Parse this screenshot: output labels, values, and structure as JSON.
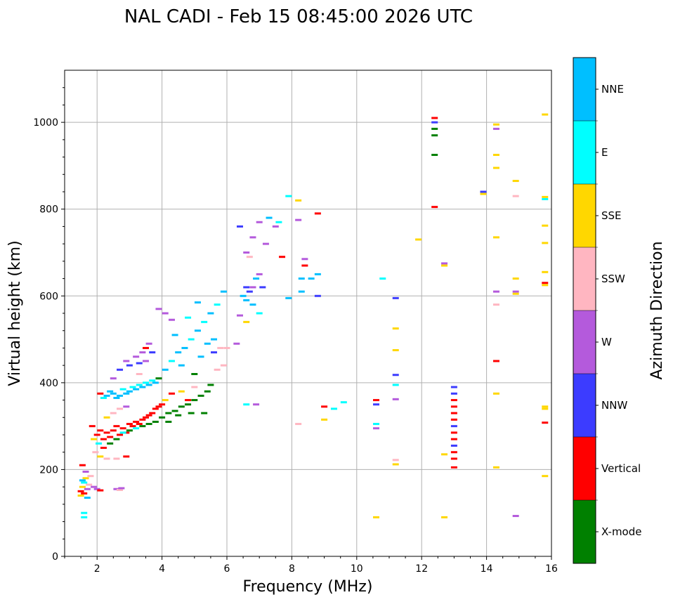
{
  "chart_data": {
    "type": "scatter",
    "title": "NAL CADI - Feb 15 08:45:00 2026 UTC",
    "xlabel": "Frequency (MHz)",
    "ylabel": "Virtual height (km)",
    "xlim": [
      1,
      16
    ],
    "ylim": [
      0,
      1120
    ],
    "xticks": [
      2,
      4,
      6,
      8,
      10,
      12,
      14,
      16
    ],
    "yticks": [
      0,
      200,
      400,
      600,
      800,
      1000
    ],
    "grid": true,
    "colorbar": {
      "label": "Azimuth Direction",
      "categories": [
        {
          "name": "X-mode",
          "color": "#008000"
        },
        {
          "name": "Vertical",
          "color": "#ff0000"
        },
        {
          "name": "NNW",
          "color": "#3c3cff"
        },
        {
          "name": "W",
          "color": "#b45adc"
        },
        {
          "name": "SSW",
          "color": "#ffb6c1"
        },
        {
          "name": "SSE",
          "color": "#ffd700"
        },
        {
          "name": "E",
          "color": "#00ffff"
        },
        {
          "name": "NNE",
          "color": "#00bfff"
        }
      ]
    },
    "points": [
      [
        1.5,
        150,
        "Vertical"
      ],
      [
        1.55,
        160,
        "SSE"
      ],
      [
        1.6,
        170,
        "E"
      ],
      [
        1.6,
        145,
        "Vertical"
      ],
      [
        1.65,
        180,
        "SSE"
      ],
      [
        1.55,
        175,
        "NNE"
      ],
      [
        1.7,
        155,
        "W"
      ],
      [
        1.6,
        100,
        "E"
      ],
      [
        1.6,
        90,
        "E"
      ],
      [
        1.75,
        165,
        "SSW"
      ],
      [
        1.5,
        140,
        "SSE"
      ],
      [
        1.65,
        195,
        "W"
      ],
      [
        1.8,
        185,
        "SSW"
      ],
      [
        1.9,
        160,
        "W"
      ],
      [
        2.0,
        155,
        "W"
      ],
      [
        2.1,
        152,
        "Vertical"
      ],
      [
        2.6,
        155,
        "W"
      ],
      [
        2.7,
        153,
        "SSW"
      ],
      [
        2.75,
        157,
        "W"
      ],
      [
        1.55,
        210,
        "Vertical"
      ],
      [
        1.7,
        135,
        "NNE"
      ],
      [
        1.85,
        300,
        "Vertical"
      ],
      [
        1.9,
        270,
        "SSE"
      ],
      [
        1.95,
        240,
        "SSW"
      ],
      [
        2.0,
        280,
        "Vertical"
      ],
      [
        2.05,
        260,
        "E"
      ],
      [
        2.1,
        290,
        "Vertical"
      ],
      [
        2.2,
        270,
        "Vertical"
      ],
      [
        2.3,
        285,
        "Vertical"
      ],
      [
        2.4,
        275,
        "Vertical"
      ],
      [
        2.5,
        290,
        "Vertical"
      ],
      [
        2.6,
        300,
        "Vertical"
      ],
      [
        2.7,
        280,
        "Vertical"
      ],
      [
        2.8,
        295,
        "Vertical"
      ],
      [
        2.9,
        285,
        "Vertical"
      ],
      [
        3.0,
        305,
        "Vertical"
      ],
      [
        3.1,
        300,
        "Vertical"
      ],
      [
        3.2,
        310,
        "Vertical"
      ],
      [
        3.3,
        305,
        "Vertical"
      ],
      [
        3.4,
        315,
        "Vertical"
      ],
      [
        3.5,
        320,
        "Vertical"
      ],
      [
        3.6,
        325,
        "Vertical"
      ],
      [
        3.7,
        330,
        "Vertical"
      ],
      [
        3.8,
        340,
        "Vertical"
      ],
      [
        3.9,
        345,
        "Vertical"
      ],
      [
        2.2,
        250,
        "Vertical"
      ],
      [
        2.4,
        260,
        "X-mode"
      ],
      [
        2.6,
        270,
        "X-mode"
      ],
      [
        2.8,
        285,
        "E"
      ],
      [
        3.0,
        290,
        "X-mode"
      ],
      [
        3.2,
        295,
        "E"
      ],
      [
        3.4,
        300,
        "X-mode"
      ],
      [
        3.6,
        305,
        "X-mode"
      ],
      [
        3.8,
        310,
        "X-mode"
      ],
      [
        2.3,
        320,
        "SSE"
      ],
      [
        2.5,
        330,
        "SSW"
      ],
      [
        2.7,
        340,
        "SSW"
      ],
      [
        2.9,
        345,
        "W"
      ],
      [
        2.1,
        230,
        "SSE"
      ],
      [
        2.3,
        225,
        "SSW"
      ],
      [
        2.6,
        225,
        "SSW"
      ],
      [
        2.9,
        230,
        "Vertical"
      ],
      [
        2.3,
        370,
        "NNE"
      ],
      [
        2.4,
        380,
        "NNE"
      ],
      [
        2.5,
        375,
        "NNE"
      ],
      [
        2.6,
        365,
        "NNE"
      ],
      [
        2.7,
        370,
        "NNE"
      ],
      [
        2.8,
        385,
        "E"
      ],
      [
        2.9,
        375,
        "NNE"
      ],
      [
        3.0,
        380,
        "NNE"
      ],
      [
        3.1,
        390,
        "E"
      ],
      [
        3.2,
        385,
        "NNE"
      ],
      [
        3.3,
        395,
        "E"
      ],
      [
        3.4,
        390,
        "NNE"
      ],
      [
        3.5,
        400,
        "E"
      ],
      [
        3.6,
        395,
        "NNE"
      ],
      [
        3.7,
        405,
        "E"
      ],
      [
        3.8,
        400,
        "NNE"
      ],
      [
        2.1,
        375,
        "Vertical"
      ],
      [
        2.2,
        365,
        "E"
      ],
      [
        3.9,
        410,
        "X-mode"
      ],
      [
        2.5,
        410,
        "W"
      ],
      [
        2.7,
        430,
        "NNW"
      ],
      [
        2.9,
        450,
        "W"
      ],
      [
        3.0,
        440,
        "NNW"
      ],
      [
        3.2,
        460,
        "W"
      ],
      [
        3.3,
        445,
        "NNW"
      ],
      [
        3.4,
        470,
        "W"
      ],
      [
        3.5,
        480,
        "Vertical"
      ],
      [
        3.6,
        490,
        "W"
      ],
      [
        3.7,
        470,
        "NNW"
      ],
      [
        3.5,
        450,
        "W"
      ],
      [
        3.3,
        420,
        "SSW"
      ],
      [
        4.0,
        320,
        "X-mode"
      ],
      [
        4.2,
        330,
        "X-mode"
      ],
      [
        4.4,
        335,
        "X-mode"
      ],
      [
        4.6,
        345,
        "X-mode"
      ],
      [
        4.8,
        350,
        "X-mode"
      ],
      [
        5.0,
        360,
        "X-mode"
      ],
      [
        5.2,
        370,
        "X-mode"
      ],
      [
        5.4,
        380,
        "X-mode"
      ],
      [
        4.2,
        310,
        "X-mode"
      ],
      [
        4.5,
        325,
        "X-mode"
      ],
      [
        4.9,
        330,
        "X-mode"
      ],
      [
        5.3,
        330,
        "X-mode"
      ],
      [
        4.1,
        360,
        "SSE"
      ],
      [
        4.3,
        375,
        "Vertical"
      ],
      [
        4.6,
        380,
        "SSE"
      ],
      [
        5.0,
        390,
        "SSW"
      ],
      [
        5.5,
        395,
        "X-mode"
      ],
      [
        5.0,
        420,
        "X-mode"
      ],
      [
        4.8,
        360,
        "Vertical"
      ],
      [
        4.0,
        350,
        "Vertical"
      ],
      [
        4.1,
        430,
        "NNE"
      ],
      [
        4.3,
        450,
        "E"
      ],
      [
        4.5,
        470,
        "NNE"
      ],
      [
        4.7,
        480,
        "NNE"
      ],
      [
        4.9,
        500,
        "E"
      ],
      [
        5.1,
        520,
        "NNE"
      ],
      [
        5.3,
        540,
        "E"
      ],
      [
        5.5,
        560,
        "NNE"
      ],
      [
        5.7,
        580,
        "E"
      ],
      [
        5.2,
        460,
        "NNE"
      ],
      [
        5.4,
        490,
        "NNE"
      ],
      [
        5.6,
        500,
        "NNE"
      ],
      [
        4.6,
        440,
        "NNE"
      ],
      [
        4.4,
        510,
        "NNE"
      ],
      [
        4.3,
        545,
        "W"
      ],
      [
        4.8,
        550,
        "E"
      ],
      [
        5.1,
        585,
        "NNE"
      ],
      [
        5.9,
        610,
        "NNE"
      ],
      [
        5.8,
        480,
        "SSW"
      ],
      [
        5.9,
        440,
        "SSW"
      ],
      [
        5.7,
        430,
        "SSW"
      ],
      [
        5.6,
        470,
        "NNW"
      ],
      [
        4.1,
        560,
        "W"
      ],
      [
        3.9,
        570,
        "W"
      ],
      [
        6.5,
        600,
        "NNE"
      ],
      [
        6.6,
        590,
        "NNE"
      ],
      [
        6.7,
        610,
        "NNW"
      ],
      [
        6.8,
        620,
        "W"
      ],
      [
        6.9,
        640,
        "NNE"
      ],
      [
        7.0,
        650,
        "W"
      ],
      [
        6.6,
        620,
        "NNW"
      ],
      [
        6.8,
        580,
        "NNE"
      ],
      [
        7.0,
        560,
        "E"
      ],
      [
        7.1,
        620,
        "NNW"
      ],
      [
        7.2,
        720,
        "W"
      ],
      [
        7.0,
        770,
        "W"
      ],
      [
        7.3,
        780,
        "NNE"
      ],
      [
        7.6,
        770,
        "E"
      ],
      [
        7.5,
        760,
        "W"
      ],
      [
        6.7,
        690,
        "SSW"
      ],
      [
        6.6,
        700,
        "W"
      ],
      [
        6.4,
        760,
        "NNW"
      ],
      [
        6.8,
        735,
        "W"
      ],
      [
        7.7,
        690,
        "Vertical"
      ],
      [
        7.9,
        830,
        "E"
      ],
      [
        8.2,
        820,
        "SSE"
      ],
      [
        8.2,
        775,
        "W"
      ],
      [
        8.3,
        640,
        "NNE"
      ],
      [
        8.3,
        610,
        "NNE"
      ],
      [
        8.4,
        670,
        "Vertical"
      ],
      [
        8.4,
        685,
        "W"
      ],
      [
        8.6,
        640,
        "NNE"
      ],
      [
        8.8,
        650,
        "NNE"
      ],
      [
        8.8,
        600,
        "NNW"
      ],
      [
        8.8,
        790,
        "Vertical"
      ],
      [
        7.9,
        595,
        "NNE"
      ],
      [
        6.6,
        540,
        "SSE"
      ],
      [
        6.4,
        555,
        "W"
      ],
      [
        6.3,
        490,
        "W"
      ],
      [
        6.0,
        480,
        "SSW"
      ],
      [
        6.6,
        350,
        "E"
      ],
      [
        6.9,
        350,
        "W"
      ],
      [
        8.2,
        305,
        "SSW"
      ],
      [
        9.0,
        345,
        "Vertical"
      ],
      [
        9.0,
        315,
        "SSE"
      ],
      [
        9.3,
        340,
        "E"
      ],
      [
        9.6,
        355,
        "E"
      ],
      [
        10.6,
        360,
        "Vertical"
      ],
      [
        10.6,
        350,
        "NNW"
      ],
      [
        10.6,
        305,
        "E"
      ],
      [
        10.6,
        295,
        "W"
      ],
      [
        10.6,
        90,
        "SSE"
      ],
      [
        10.8,
        640,
        "E"
      ],
      [
        11.2,
        595,
        "NNW"
      ],
      [
        11.2,
        525,
        "SSE"
      ],
      [
        11.2,
        475,
        "SSE"
      ],
      [
        11.2,
        418,
        "NNW"
      ],
      [
        11.2,
        395,
        "E"
      ],
      [
        11.2,
        362,
        "W"
      ],
      [
        11.2,
        222,
        "SSW"
      ],
      [
        11.2,
        212,
        "SSE"
      ],
      [
        11.9,
        730,
        "SSE"
      ],
      [
        12.4,
        1010,
        "Vertical"
      ],
      [
        12.4,
        1000,
        "NNW"
      ],
      [
        12.4,
        985,
        "X-mode"
      ],
      [
        12.4,
        970,
        "X-mode"
      ],
      [
        12.4,
        925,
        "X-mode"
      ],
      [
        12.4,
        805,
        "Vertical"
      ],
      [
        12.7,
        675,
        "W"
      ],
      [
        12.7,
        670,
        "SSE"
      ],
      [
        12.7,
        235,
        "SSE"
      ],
      [
        12.7,
        90,
        "SSE"
      ],
      [
        13.0,
        390,
        "NNW"
      ],
      [
        13.0,
        375,
        "NNW"
      ],
      [
        13.0,
        360,
        "Vertical"
      ],
      [
        13.0,
        345,
        "Vertical"
      ],
      [
        13.0,
        330,
        "Vertical"
      ],
      [
        13.0,
        315,
        "Vertical"
      ],
      [
        13.0,
        300,
        "NNW"
      ],
      [
        13.0,
        285,
        "Vertical"
      ],
      [
        13.0,
        270,
        "Vertical"
      ],
      [
        13.0,
        255,
        "NNW"
      ],
      [
        13.0,
        240,
        "Vertical"
      ],
      [
        13.0,
        225,
        "Vertical"
      ],
      [
        13.0,
        205,
        "Vertical"
      ],
      [
        13.9,
        840,
        "NNW"
      ],
      [
        13.9,
        835,
        "SSE"
      ],
      [
        14.3,
        995,
        "SSE"
      ],
      [
        14.3,
        985,
        "W"
      ],
      [
        14.3,
        925,
        "SSE"
      ],
      [
        14.3,
        895,
        "SSE"
      ],
      [
        14.3,
        735,
        "SSE"
      ],
      [
        14.3,
        610,
        "W"
      ],
      [
        14.3,
        580,
        "SSW"
      ],
      [
        14.3,
        450,
        "Vertical"
      ],
      [
        14.3,
        375,
        "SSE"
      ],
      [
        14.3,
        205,
        "SSE"
      ],
      [
        14.9,
        865,
        "SSE"
      ],
      [
        14.9,
        830,
        "SSW"
      ],
      [
        14.9,
        640,
        "SSE"
      ],
      [
        14.9,
        610,
        "W"
      ],
      [
        14.9,
        605,
        "SSE"
      ],
      [
        14.9,
        93,
        "W"
      ],
      [
        15.8,
        1018,
        "SSE"
      ],
      [
        15.8,
        828,
        "SSE"
      ],
      [
        15.8,
        823,
        "E"
      ],
      [
        15.8,
        762,
        "SSE"
      ],
      [
        15.8,
        722,
        "SSE"
      ],
      [
        15.8,
        655,
        "SSE"
      ],
      [
        15.8,
        630,
        "Vertical"
      ],
      [
        15.8,
        625,
        "SSE"
      ],
      [
        15.8,
        345,
        "SSE"
      ],
      [
        15.8,
        340,
        "SSE"
      ],
      [
        15.8,
        308,
        "Vertical"
      ],
      [
        15.8,
        185,
        "SSE"
      ]
    ]
  }
}
